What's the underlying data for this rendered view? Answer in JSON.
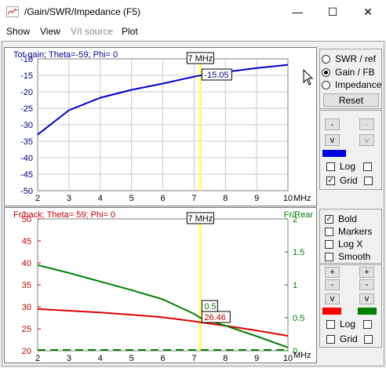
{
  "window": {
    "title": "/Gain/SWR/Impedance (F5)",
    "minimize_glyph": "—",
    "maximize_glyph": "☐",
    "close_glyph": "✕"
  },
  "menu": [
    {
      "label": "Show",
      "enabled": true
    },
    {
      "label": "View",
      "enabled": true
    },
    {
      "label": "V/I source",
      "enabled": false
    },
    {
      "label": "Plot",
      "enabled": true
    }
  ],
  "top_panel": {
    "header": "Tot-gain; Theta=-59; Phi= 0",
    "marker_label": "7 MHz",
    "value_label": "-15.05",
    "y_ticks": [
      "-10",
      "-15",
      "-20",
      "-25",
      "-30",
      "-35",
      "-40",
      "-45",
      "-50"
    ],
    "x_ticks": [
      "2",
      "3",
      "4",
      "5",
      "6",
      "7",
      "8",
      "9",
      "10"
    ],
    "x_unit": "MHz",
    "curve_color": "#0000c0",
    "marker_color": "#ffff60"
  },
  "bottom_panel": {
    "header": "Fr/back; Theta= 59; Phi= 0",
    "right_axis_title": "Fr/Rear",
    "marker_label": "7 MHz",
    "red_value_label": "26.46",
    "green_value_label": "0.5",
    "left_ticks": [
      "50",
      "45",
      "40",
      "35",
      "30",
      "25",
      "20"
    ],
    "right_ticks": [
      "2",
      "1.5",
      "1",
      "0.5",
      "0"
    ],
    "x_ticks": [
      "2",
      "3",
      "4",
      "5",
      "6",
      "7",
      "8",
      "9",
      "10"
    ],
    "x_unit": "MHz",
    "red_color": "#e00000",
    "green_color": "#008000"
  },
  "chart_data": [
    {
      "type": "line",
      "title": "Tot-gain; Theta=-59; Phi= 0",
      "xlabel": "MHz",
      "ylabel": "",
      "xlim": [
        2,
        10
      ],
      "ylim": [
        -50,
        -10
      ],
      "grid": true,
      "x": [
        2,
        3,
        4,
        5,
        6,
        7,
        7.2,
        8,
        9,
        10
      ],
      "series": [
        {
          "values": [
            -33.0,
            -25.6,
            -21.8,
            -19.4,
            -17.5,
            -15.4,
            -15.05,
            -14.0,
            -12.8,
            -11.8
          ]
        }
      ],
      "marker_x": 7.2
    },
    {
      "type": "line",
      "title": "Fr/back; Theta= 59; Phi= 0",
      "xlabel": "MHz",
      "ylabel": "",
      "y2label": "Fr/Rear",
      "xlim": [
        2,
        10
      ],
      "ylim": [
        20,
        50
      ],
      "y2lim": [
        0,
        2
      ],
      "grid": false,
      "x": [
        2,
        3,
        4,
        5,
        6,
        7,
        7.2,
        8,
        9,
        10
      ],
      "series": [
        {
          "axis": "left",
          "color": "#e00000",
          "values": [
            29.5,
            29.1,
            28.7,
            28.2,
            27.6,
            26.7,
            26.46,
            25.7,
            24.6,
            23.4
          ]
        },
        {
          "axis": "right",
          "color": "#008000",
          "values": [
            1.3,
            1.18,
            1.05,
            0.92,
            0.78,
            0.56,
            0.5,
            0.38,
            0.22,
            0.05
          ]
        },
        {
          "axis": "right",
          "color": "#008000",
          "dashed": true,
          "values": [
            0,
            0,
            0,
            0,
            0,
            0,
            0,
            0,
            0,
            0
          ]
        }
      ],
      "marker_x": 7.2
    }
  ],
  "top_controls": {
    "radios": [
      {
        "label": "SWR / ref",
        "checked": false
      },
      {
        "label": "Gain / FB",
        "checked": true
      },
      {
        "label": "Impedance",
        "checked": false
      }
    ],
    "reset_label": "Reset",
    "btn_minus": "-",
    "btn_v": "v",
    "log_label": "Log",
    "grid_label": "Grid",
    "swatch_color": "#0000e0"
  },
  "bottom_controls": {
    "checks": [
      {
        "label": "Bold",
        "checked": true
      },
      {
        "label": "Markers",
        "checked": false
      },
      {
        "label": "Log X",
        "checked": false
      },
      {
        "label": "Smooth",
        "checked": false
      }
    ],
    "btn_plus": "+",
    "btn_minus": "-",
    "btn_v": "v",
    "log_label": "Log",
    "grid_label": "Grid",
    "left_swatch_color": "#ff0000",
    "right_swatch_color": "#008000"
  }
}
